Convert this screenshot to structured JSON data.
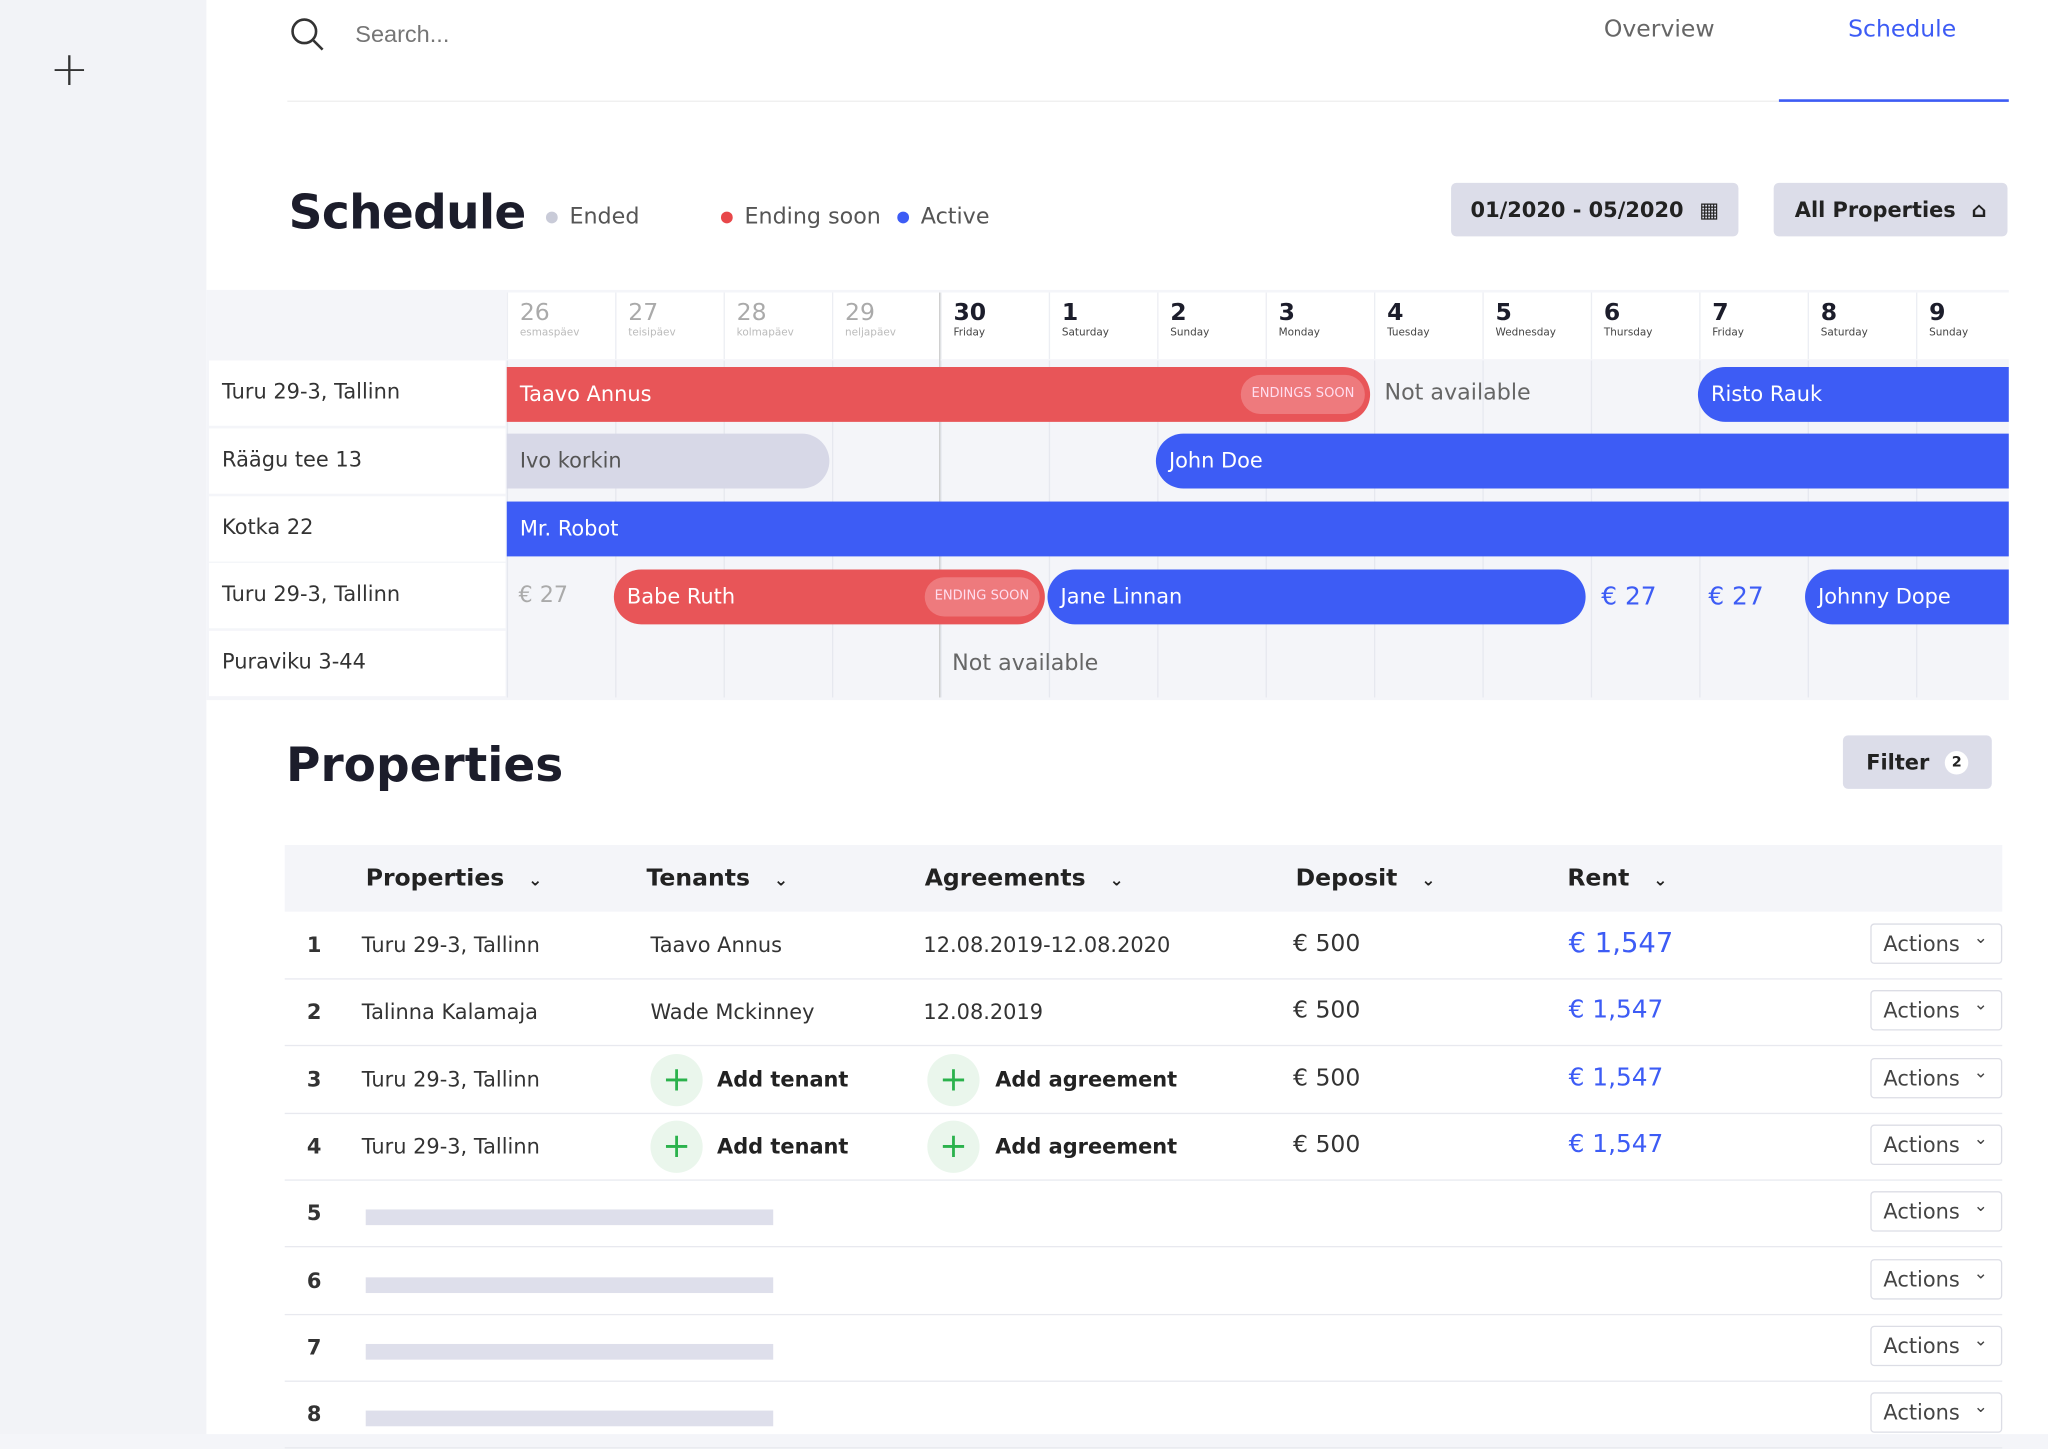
{
  "search": {
    "placeholder": "Search..."
  },
  "tabs": [
    {
      "label": "Overview"
    },
    {
      "label": "Schedule"
    }
  ],
  "schedule": {
    "title": "Schedule",
    "legend": [
      {
        "label": "Ended",
        "color": "#c9cbd8"
      },
      {
        "label": "Ending soon",
        "color": "#e8474a"
      },
      {
        "label": "Active",
        "color": "#3d5cf5"
      }
    ],
    "date_range": "01/2020 - 05/2020",
    "all_properties": "All Properties",
    "days": [
      {
        "n": "26",
        "w": "esmaspäev"
      },
      {
        "n": "27",
        "w": "teisipäev"
      },
      {
        "n": "28",
        "w": "kolmapäev"
      },
      {
        "n": "29",
        "w": "neljapäev"
      },
      {
        "n": "30",
        "w": "Friday"
      },
      {
        "n": "1",
        "w": "Saturday"
      },
      {
        "n": "2",
        "w": "Sunday"
      },
      {
        "n": "3",
        "w": "Monday"
      },
      {
        "n": "4",
        "w": "Tuesday"
      },
      {
        "n": "5",
        "w": "Wednesday"
      },
      {
        "n": "6",
        "w": "Thursday"
      },
      {
        "n": "7",
        "w": "Friday"
      },
      {
        "n": "8",
        "w": "Saturday"
      },
      {
        "n": "9",
        "w": "Sunday"
      }
    ],
    "rows": [
      "Turu 29-3, Tallinn",
      "Räägu tee 13",
      "Kotka 22",
      "Turu 29-3, Tallinn",
      "Puraviku 3-44"
    ],
    "bars": {
      "taavo": "Taavo Annus",
      "taavo_badge": "ENDINGS SOON",
      "na1": "Not available",
      "risto": "Risto Rauk",
      "ivo": "Ivo korkin",
      "john": "John Doe",
      "robot": "Mr. Robot",
      "price1": "€ 27",
      "babe": "Babe Ruth",
      "babe_badge": "ENDING SOON",
      "jane": "Jane Linnan",
      "price2": "€ 27",
      "price3": "€ 27",
      "johnny": "Johnny Dope",
      "na2": "Not available"
    }
  },
  "properties": {
    "title": "Properties",
    "filter": "Filter",
    "filter_count": "2",
    "columns": [
      "Properties",
      "Tenants",
      "Agreements",
      "Deposit",
      "Rent"
    ],
    "rows": [
      {
        "n": "1",
        "property": "Turu 29-3, Tallinn",
        "tenant": "Taavo Annus",
        "agreement": "12.08.2019-12.08.2020",
        "deposit": "€ 500",
        "rent": "€ 1,547"
      },
      {
        "n": "2",
        "property": "Talinna Kalamaja",
        "tenant": "Wade Mckinney",
        "agreement": "12.08.2019",
        "deposit": "€ 500",
        "rent": "€ 1,547"
      },
      {
        "n": "3",
        "property": "Turu 29-3, Tallinn",
        "tenant": "Add tenant",
        "agreement": "Add agreement",
        "deposit": "€ 500",
        "rent": "€ 1,547"
      },
      {
        "n": "4",
        "property": "Turu 29-3, Tallinn",
        "tenant": "Add tenant",
        "agreement": "Add agreement",
        "deposit": "€ 500",
        "rent": "€ 1,547"
      },
      {
        "n": "5"
      },
      {
        "n": "6"
      },
      {
        "n": "7"
      },
      {
        "n": "8"
      }
    ],
    "actions_label": "Actions"
  }
}
